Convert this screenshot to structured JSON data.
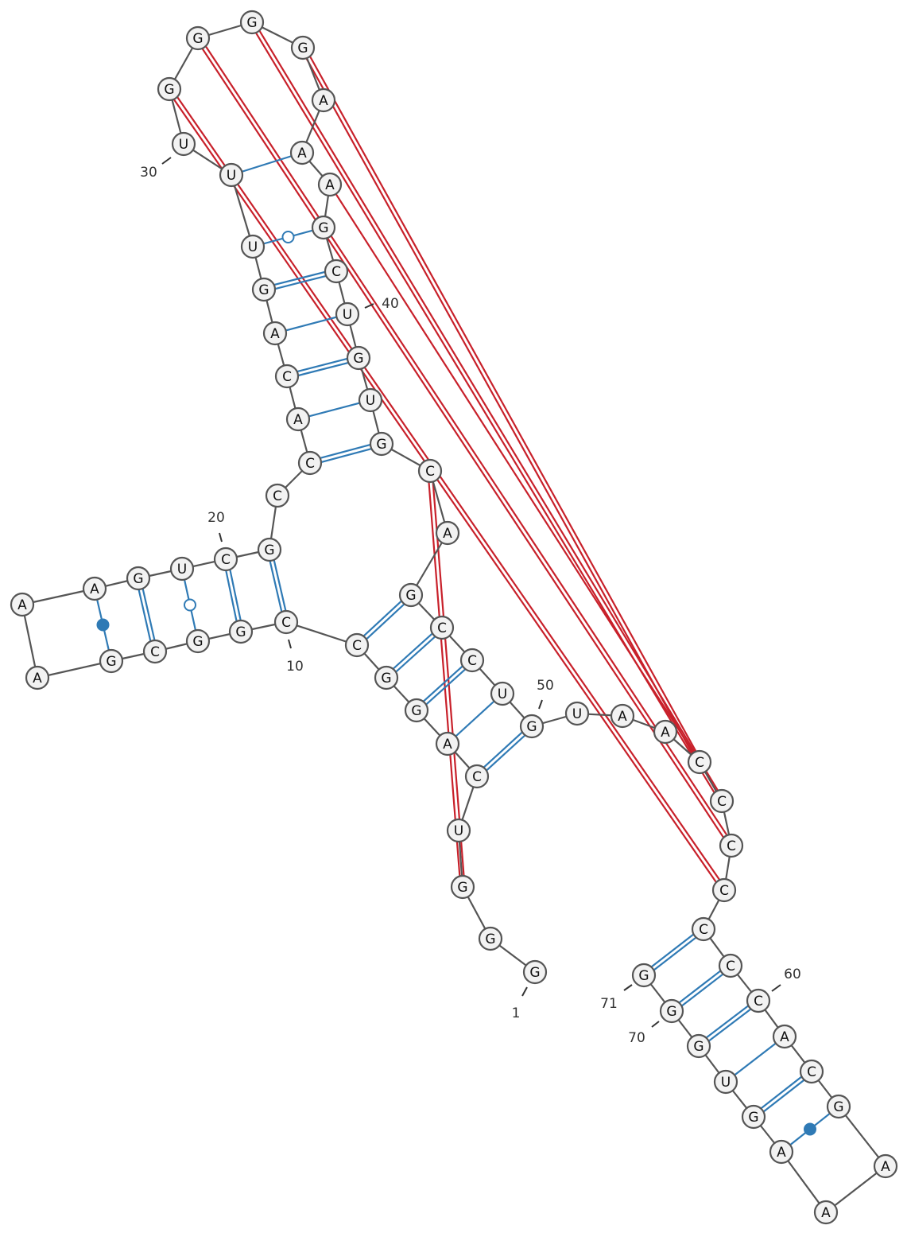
{
  "nucleotides": [
    "G",
    "G",
    "G",
    "U",
    "C",
    "A",
    "G",
    "G",
    "C",
    "C",
    "G",
    "G",
    "C",
    "G",
    "A",
    "A",
    "A",
    "G",
    "U",
    "C",
    "G",
    "C",
    "C",
    "A",
    "C",
    "A",
    "G",
    "U",
    "U",
    "U",
    "G",
    "G",
    "G",
    "G",
    "A",
    "A",
    "A",
    "G",
    "C",
    "U",
    "G",
    "U",
    "G",
    "C",
    "A",
    "G",
    "C",
    "C",
    "U",
    "G",
    "U",
    "A",
    "A",
    "C",
    "C",
    "C",
    "C",
    "C",
    "C",
    "C",
    "A",
    "C",
    "G",
    "A",
    "A",
    "A",
    "G",
    "U",
    "G",
    "G",
    "G"
  ],
  "position_labels": [
    1,
    10,
    20,
    30,
    40,
    50,
    60,
    70,
    71
  ]
}
